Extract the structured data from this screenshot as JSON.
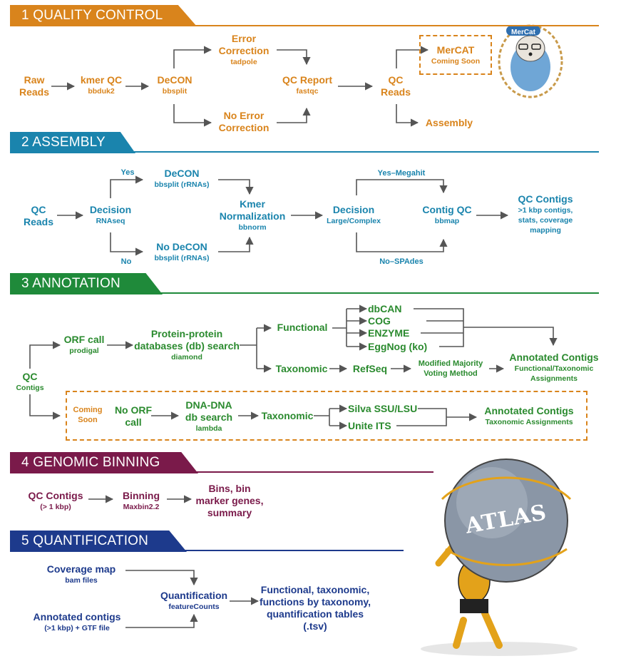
{
  "sections": {
    "qc": {
      "title": "1 QUALITY CONTROL",
      "color": "#d9841c"
    },
    "assembly": {
      "title": "2 ASSEMBLY",
      "color": "#1a84ad"
    },
    "annotation": {
      "title": "3 ANNOTATION",
      "color": "#1f8a3a"
    },
    "binning": {
      "title": "4 GENOMIC BINNING",
      "color": "#7a1a4a"
    },
    "quant": {
      "title": "5 QUANTIFICATION",
      "color": "#1d3a8c"
    }
  },
  "qc": {
    "raw_reads": "Raw\nReads",
    "kmer_qc": "kmer QC",
    "kmer_qc_tool": "bbduk2",
    "decon": "DeCON",
    "decon_tool": "bbsplit",
    "error_corr": "Error\nCorrection",
    "error_corr_tool": "tadpole",
    "no_error_corr": "No Error\nCorrection",
    "qc_report": "QC Report",
    "qc_report_tool": "fastqc",
    "qc_reads": "QC\nReads",
    "mercat": "MerCAT",
    "mercat_note": "Coming Soon",
    "assembly": "Assembly",
    "mascot_label": "MerCat"
  },
  "assembly": {
    "qc_reads": "QC\nReads",
    "decision": "Decision",
    "decision_sub": "RNAseq",
    "yes": "Yes",
    "no": "No",
    "decon": "DeCON",
    "decon_tool": "bbsplit (rRNAs)",
    "no_decon": "No DeCON",
    "no_decon_tool": "bbsplit (rRNAs)",
    "kmer_norm": "Kmer\nNormalization",
    "kmer_norm_tool": "bbnorm",
    "decision2": "Decision",
    "decision2_sub": "Large/Complex",
    "yes_megahit": "Yes–Megahit",
    "no_spades": "No–SPAdes",
    "contig_qc": "Contig QC",
    "contig_qc_tool": "bbmap",
    "qc_contigs": "QC Contigs",
    "qc_contigs_sub": ">1 kbp contigs,\nstats, coverage\nmapping"
  },
  "annotation": {
    "qc_contigs": "QC",
    "qc_contigs_sub": "Contigs",
    "orf_call": "ORF call",
    "orf_call_tool": "prodigal",
    "ppdb": "Protein-protein\ndatabases (db) search",
    "ppdb_tool": "diamond",
    "functional": "Functional",
    "dbcan": "dbCAN",
    "cog": "COG",
    "enzyme": "ENZYME",
    "eggnog": "EggNog (ko)",
    "taxonomic": "Taxonomic",
    "refseq": "RefSeq",
    "voting": "Modified Majority\nVoting Method",
    "annotated": "Annotated Contigs",
    "annotated_sub": "Functional/Taxonomic\nAssignments",
    "coming_soon": "Coming\nSoon",
    "no_orf": "No ORF\ncall",
    "dnadna": "DNA-DNA\ndb search",
    "dnadna_tool": "lambda",
    "taxonomic2": "Taxonomic",
    "silva": "Silva SSU/LSU",
    "unite": "Unite ITS",
    "annotated2": "Annotated Contigs",
    "annotated2_sub": "Taxonomic Assignments"
  },
  "binning": {
    "qc_contigs": "QC Contigs",
    "qc_contigs_sub": "(> 1 kbp)",
    "binning": "Binning",
    "binning_tool": "Maxbin2.2",
    "bins": "Bins, bin\nmarker genes,\nsummary"
  },
  "quant": {
    "coverage": "Coverage map",
    "coverage_sub": "bam files",
    "annotated": "Annotated contigs",
    "annotated_sub": "(>1 kbp) + GTF file",
    "quantification": "Quantification",
    "quantification_tool": "featureCounts",
    "output": "Functional, taxonomic,\nfunctions by taxonomy,\nquantification tables (.tsv)"
  },
  "atlas_logo": "ATLAS"
}
